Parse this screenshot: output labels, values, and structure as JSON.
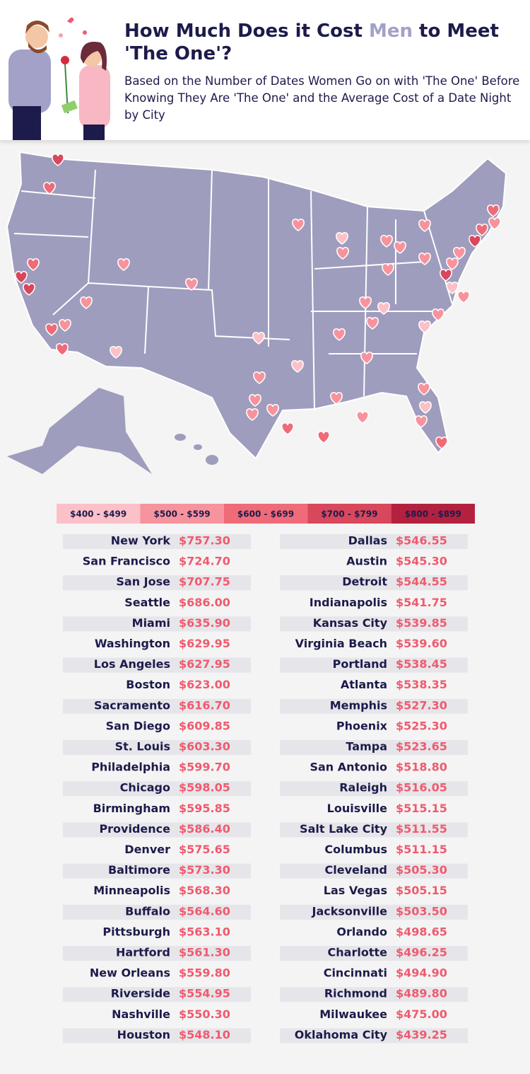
{
  "header": {
    "title": {
      "before": "How Much Does it Cost ",
      "highlight": "Men",
      "after": " to Meet 'The One'?"
    },
    "subtitle": "Based on the Number of Dates Women Go on with 'The One' Before Knowing They Are 'The One' and the Average Cost of a Date Night by City"
  },
  "legend": [
    {
      "label": "$400 - $499",
      "color": "#fcc0c8"
    },
    {
      "label": "$500 - $599",
      "color": "#f7939d"
    },
    {
      "label": "$600 - $699",
      "color": "#ef6b78"
    },
    {
      "label": "$700 - $799",
      "color": "#d9475c"
    },
    {
      "label": "$800 - $899",
      "color": "#b3213f"
    }
  ],
  "table": {
    "columns": [
      [
        [
          "New York",
          "$757.30"
        ],
        [
          "San Francisco",
          "$724.70"
        ],
        [
          "San Jose",
          "$707.75"
        ],
        [
          "Seattle",
          "$686.00"
        ],
        [
          "Miami",
          "$635.90"
        ],
        [
          "Washington",
          "$629.95"
        ],
        [
          "Los Angeles",
          "$627.95"
        ],
        [
          "Boston",
          "$623.00"
        ],
        [
          "Sacramento",
          "$616.70"
        ],
        [
          "San Diego",
          "$609.85"
        ],
        [
          "St. Louis",
          "$603.30"
        ],
        [
          "Philadelphia",
          "$599.70"
        ],
        [
          "Chicago",
          "$598.05"
        ],
        [
          "Birmingham",
          "$595.85"
        ],
        [
          "Providence",
          "$586.40"
        ],
        [
          "Denver",
          "$575.65"
        ],
        [
          "Baltimore",
          "$573.30"
        ],
        [
          "Minneapolis",
          "$568.30"
        ],
        [
          "Buffalo",
          "$564.60"
        ],
        [
          "Pittsburgh",
          "$563.10"
        ],
        [
          "Hartford",
          "$561.30"
        ],
        [
          "New Orleans",
          "$559.80"
        ],
        [
          "Riverside",
          "$554.95"
        ],
        [
          "Nashville",
          "$550.30"
        ],
        [
          "Houston",
          "$548.10"
        ]
      ],
      [
        [
          "Dallas",
          "$546.55"
        ],
        [
          "Austin",
          "$545.30"
        ],
        [
          "Detroit",
          "$544.55"
        ],
        [
          "Indianapolis",
          "$541.75"
        ],
        [
          "Kansas City",
          "$539.85"
        ],
        [
          "Virginia Beach",
          "$539.60"
        ],
        [
          "Portland",
          "$538.45"
        ],
        [
          "Atlanta",
          "$538.35"
        ],
        [
          "Memphis",
          "$527.30"
        ],
        [
          "Phoenix",
          "$525.30"
        ],
        [
          "Tampa",
          "$523.65"
        ],
        [
          "San Antonio",
          "$518.80"
        ],
        [
          "Raleigh",
          "$516.05"
        ],
        [
          "Louisville",
          "$515.15"
        ],
        [
          "Salt Lake City",
          "$511.55"
        ],
        [
          "Columbus",
          "$511.15"
        ],
        [
          "Cleveland",
          "$505.30"
        ],
        [
          "Las Vegas",
          "$505.15"
        ],
        [
          "Jacksonville",
          "$503.50"
        ],
        [
          "Orlando",
          "$498.65"
        ],
        [
          "Charlotte",
          "$496.25"
        ],
        [
          "Cincinnati",
          "$494.90"
        ],
        [
          "Richmond",
          "$489.80"
        ],
        [
          "Milwaukee",
          "$475.00"
        ],
        [
          "Oklahoma City",
          "$439.25"
        ]
      ]
    ]
  }
}
